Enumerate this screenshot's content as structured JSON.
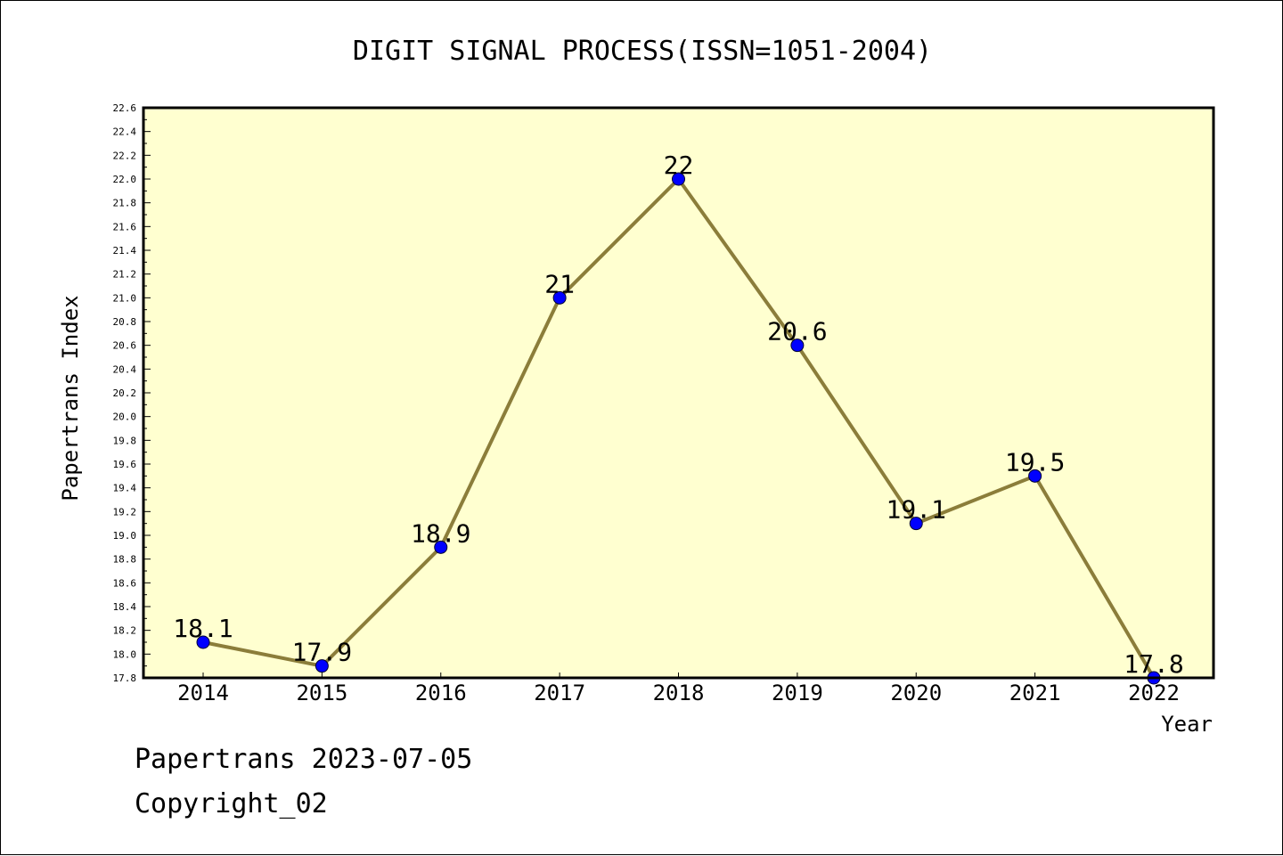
{
  "footer": {
    "date_text": "Papertrans 2023-07-05",
    "copyright_text": "Copyright_02"
  },
  "colors": {
    "plot_background": "#ffffd0",
    "line": "#8b7d3a",
    "marker": "#0000ff",
    "axis": "#000000"
  },
  "chart_data": {
    "type": "line",
    "title": "DIGIT SIGNAL PROCESS(ISSN=1051-2004)",
    "xlabel": "Year",
    "ylabel": "Papertrans Index",
    "categories": [
      "2014",
      "2015",
      "2016",
      "2017",
      "2018",
      "2019",
      "2020",
      "2021",
      "2022"
    ],
    "series": [
      {
        "values": [
          18.1,
          17.9,
          18.9,
          21.0,
          22.0,
          20.6,
          19.1,
          19.5,
          17.8
        ],
        "data_labels": [
          "18.1",
          "17.9",
          "18.9",
          "21",
          "22",
          "20.6",
          "19.1",
          "19.5",
          "17.8"
        ]
      }
    ],
    "ylim": [
      17.8,
      22.6
    ],
    "y_ticks": [
      "17.8",
      "18.0",
      "18.2",
      "18.4",
      "18.6",
      "18.8",
      "19.0",
      "19.2",
      "19.4",
      "19.6",
      "19.8",
      "20.0",
      "20.2",
      "20.4",
      "20.6",
      "20.8",
      "21.0",
      "21.2",
      "21.4",
      "21.6",
      "21.8",
      "22.0",
      "22.2",
      "22.4",
      "22.6"
    ],
    "grid": false,
    "legend": "none"
  }
}
